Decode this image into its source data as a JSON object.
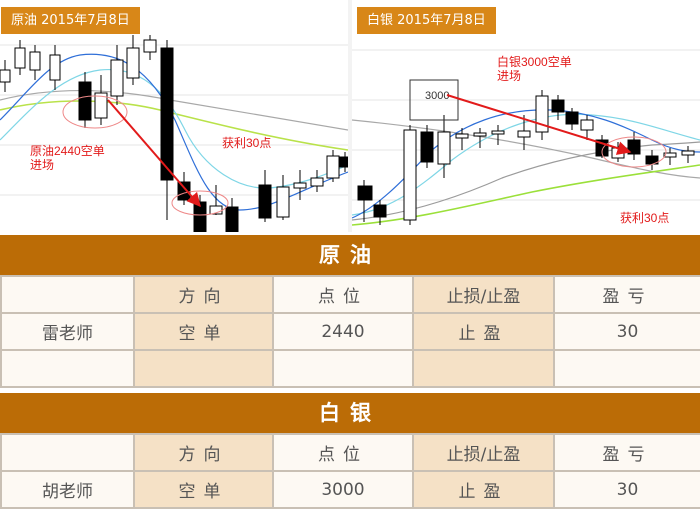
{
  "charts": [
    {
      "title": "原油 2015年7月8日",
      "annotations": {
        "entry": "原油2440空单\n进场",
        "profit": "获利30点"
      }
    },
    {
      "title": "白银 2015年7月8日",
      "annotations": {
        "entry": "白银3000空单\n进场",
        "profit": "获利30点",
        "price_box": "3000"
      }
    }
  ],
  "tables": [
    {
      "section_title": "原油",
      "headers": [
        "",
        "方向",
        "点位",
        "止损/止盈",
        "盈亏"
      ],
      "rows": [
        [
          "雷老师",
          "空单",
          "2440",
          "止盈",
          "30"
        ],
        [
          "",
          "",
          "",
          "",
          ""
        ]
      ]
    },
    {
      "section_title": "白银",
      "headers": [
        "",
        "方向",
        "点位",
        "止损/止盈",
        "盈亏"
      ],
      "rows": [
        [
          "胡老师",
          "空单",
          "3000",
          "止盈",
          "30"
        ]
      ]
    }
  ],
  "colors": {
    "header": "#bb6c06",
    "chart_title": "#d88718",
    "arrow": "#e21b1b"
  }
}
